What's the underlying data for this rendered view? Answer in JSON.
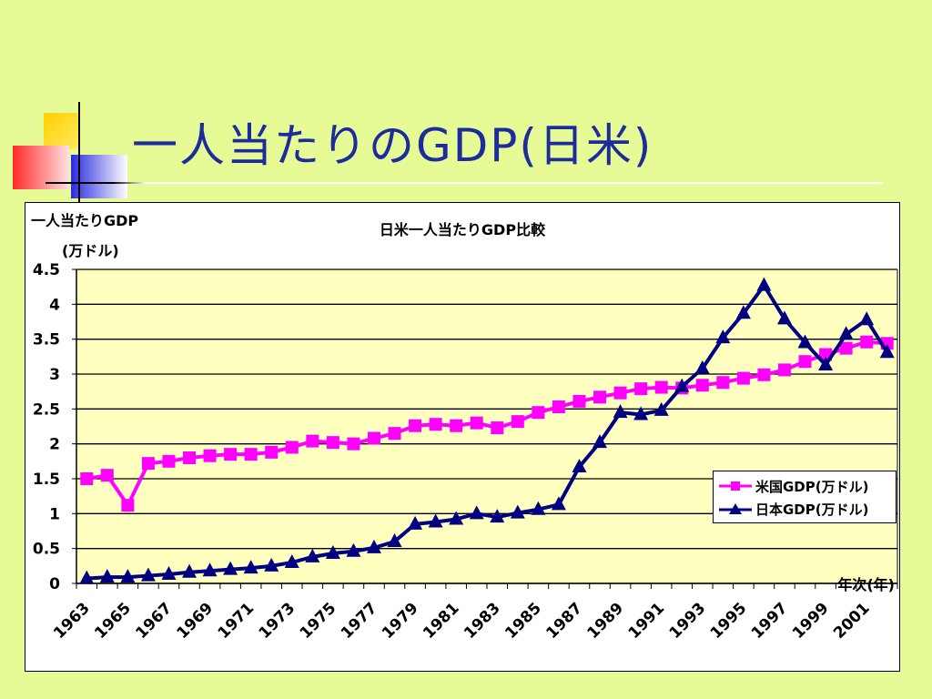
{
  "slide": {
    "title": "一人当たりのGDP(日米)"
  },
  "chart_data": {
    "type": "line",
    "title": "日米一人当たりGDP比較",
    "ylabel_line1": "一人当たりGDP",
    "ylabel_line2": "(万ドル)",
    "xlabel": "年次(年)",
    "ylim": [
      0,
      4.5
    ],
    "yticks": [
      "0",
      "0.5",
      "1",
      "1.5",
      "2",
      "2.5",
      "3",
      "3.5",
      "4",
      "4.5"
    ],
    "grid": true,
    "legend_position": "right",
    "x": [
      1963,
      1964,
      1965,
      1966,
      1967,
      1968,
      1969,
      1970,
      1971,
      1972,
      1973,
      1974,
      1975,
      1976,
      1977,
      1978,
      1979,
      1980,
      1981,
      1982,
      1983,
      1984,
      1985,
      1986,
      1987,
      1988,
      1989,
      1990,
      1991,
      1992,
      1993,
      1994,
      1995,
      1996,
      1997,
      1998,
      1999,
      2000,
      2001,
      2002
    ],
    "xtick_labels": [
      "1963",
      "1965",
      "1967",
      "1969",
      "1971",
      "1973",
      "1975",
      "1977",
      "1979",
      "1981",
      "1983",
      "1985",
      "1987",
      "1989",
      "1991",
      "1993",
      "1995",
      "1997",
      "1999",
      "2001"
    ],
    "series": [
      {
        "name": "米国GDP(万ドル)",
        "color": "#ff00ff",
        "marker": "square",
        "values": [
          1.5,
          1.55,
          1.12,
          1.72,
          1.75,
          1.8,
          1.83,
          1.85,
          1.85,
          1.88,
          1.95,
          2.04,
          2.02,
          2.0,
          2.08,
          2.15,
          2.26,
          2.28,
          2.26,
          2.3,
          2.23,
          2.32,
          2.45,
          2.53,
          2.61,
          2.67,
          2.73,
          2.79,
          2.81,
          2.8,
          2.84,
          2.88,
          2.94,
          2.99,
          3.06,
          3.18,
          3.28,
          3.37,
          3.46,
          3.44
        ]
      },
      {
        "name": "日本GDP(万ドル)",
        "color": "#000080",
        "marker": "triangle",
        "values": [
          0.07,
          0.09,
          0.09,
          0.11,
          0.13,
          0.16,
          0.18,
          0.2,
          0.22,
          0.25,
          0.3,
          0.38,
          0.43,
          0.46,
          0.51,
          0.6,
          0.85,
          0.88,
          0.92,
          1.0,
          0.95,
          1.01,
          1.06,
          1.13,
          1.67,
          2.02,
          2.45,
          2.42,
          2.48,
          2.82,
          3.08,
          3.52,
          3.87,
          4.27,
          3.79,
          3.45,
          3.13,
          3.57,
          3.78,
          3.31
        ]
      }
    ]
  }
}
